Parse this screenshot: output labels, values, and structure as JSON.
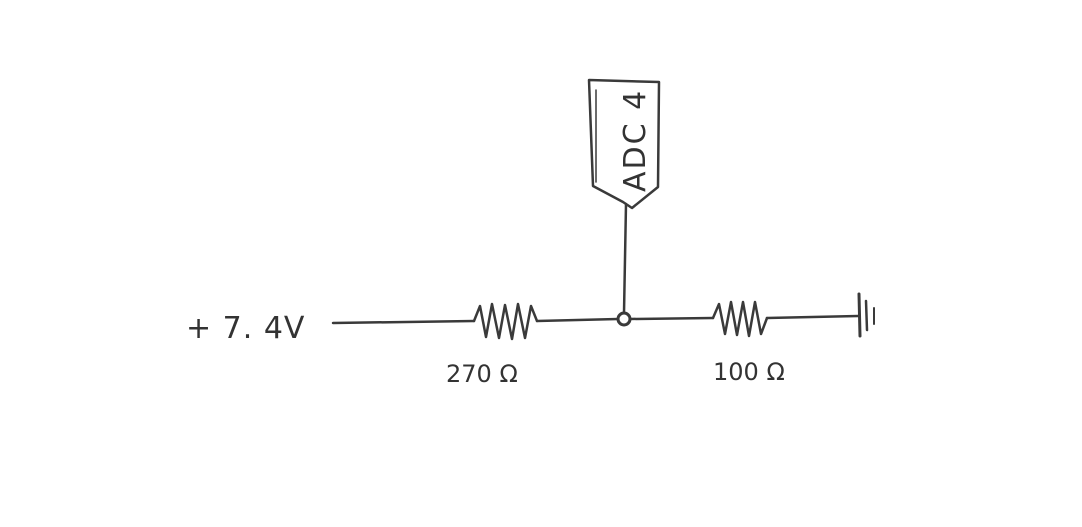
{
  "diagram": {
    "supply_label": "+ 7. 4V",
    "resistor_top_label": "270 Ω",
    "resistor_bottom_label": "100 Ω",
    "adc_label": "ADC 4",
    "ground": "ground-symbol"
  }
}
